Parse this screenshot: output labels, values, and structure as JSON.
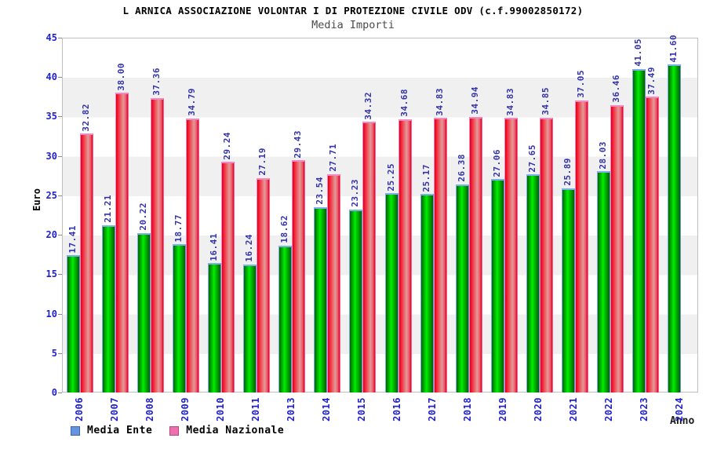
{
  "header": {
    "title": "L ARNICA ASSOCIAZIONE VOLONTAR I DI PROTEZIONE CIVILE ODV (c.f.99002850172)",
    "subtitle": "Media Importi"
  },
  "axes": {
    "y_label": "Euro",
    "x_label": "Anno",
    "y_ticks": [
      45,
      40,
      35,
      30,
      25,
      20,
      15,
      10,
      5,
      0
    ]
  },
  "legend": {
    "items": [
      {
        "id": "media-ente",
        "label": "Media Ente",
        "swatch_fill": "#6494dd",
        "swatch_border": "#3a66b0"
      },
      {
        "id": "media-nazionale",
        "label": "Media Nazionale",
        "swatch_fill": "#ec6fae",
        "swatch_border": "#bb4583"
      }
    ]
  },
  "colors": {
    "axis_text": "#2222cc",
    "value_label_text": "#3333aa",
    "band_gray": "#f0f0f0",
    "bar_green_bright": "#00ee00",
    "bar_green_dark": "#046404",
    "bar_green_cap": "#7db0ea",
    "bar_red_bright": "#f51a34",
    "bar_red_pale": "#e29a9a",
    "bar_red_cap": "#f389c3"
  },
  "chart_data": {
    "type": "bar",
    "title": "L ARNICA ASSOCIAZIONE VOLONTAR I DI PROTEZIONE CIVILE ODV (c.f.99002850172)",
    "subtitle": "Media Importi",
    "xlabel": "Anno",
    "ylabel": "Euro",
    "ylim": [
      0,
      45
    ],
    "grid": "horizontal-bands-every-5",
    "legend_position": "bottom-left",
    "value_labels": "rotated-90-above-bars, two decimals",
    "categories": [
      "2006",
      "2007",
      "2008",
      "2009",
      "2010",
      "2011",
      "2013",
      "2014",
      "2015",
      "2016",
      "2017",
      "2018",
      "2019",
      "2020",
      "2021",
      "2022",
      "2023",
      "2024"
    ],
    "series": [
      {
        "name": "Media Ente",
        "values": [
          17.41,
          21.21,
          20.22,
          18.77,
          16.41,
          16.24,
          18.62,
          23.54,
          23.23,
          25.25,
          25.17,
          26.38,
          27.06,
          27.65,
          25.89,
          28.03,
          41.05,
          41.6
        ]
      },
      {
        "name": "Media Nazionale",
        "values": [
          32.82,
          38.0,
          37.36,
          34.79,
          29.24,
          27.19,
          29.43,
          27.71,
          34.32,
          34.68,
          34.83,
          34.94,
          34.83,
          34.85,
          37.05,
          36.46,
          37.49,
          null
        ]
      }
    ]
  }
}
